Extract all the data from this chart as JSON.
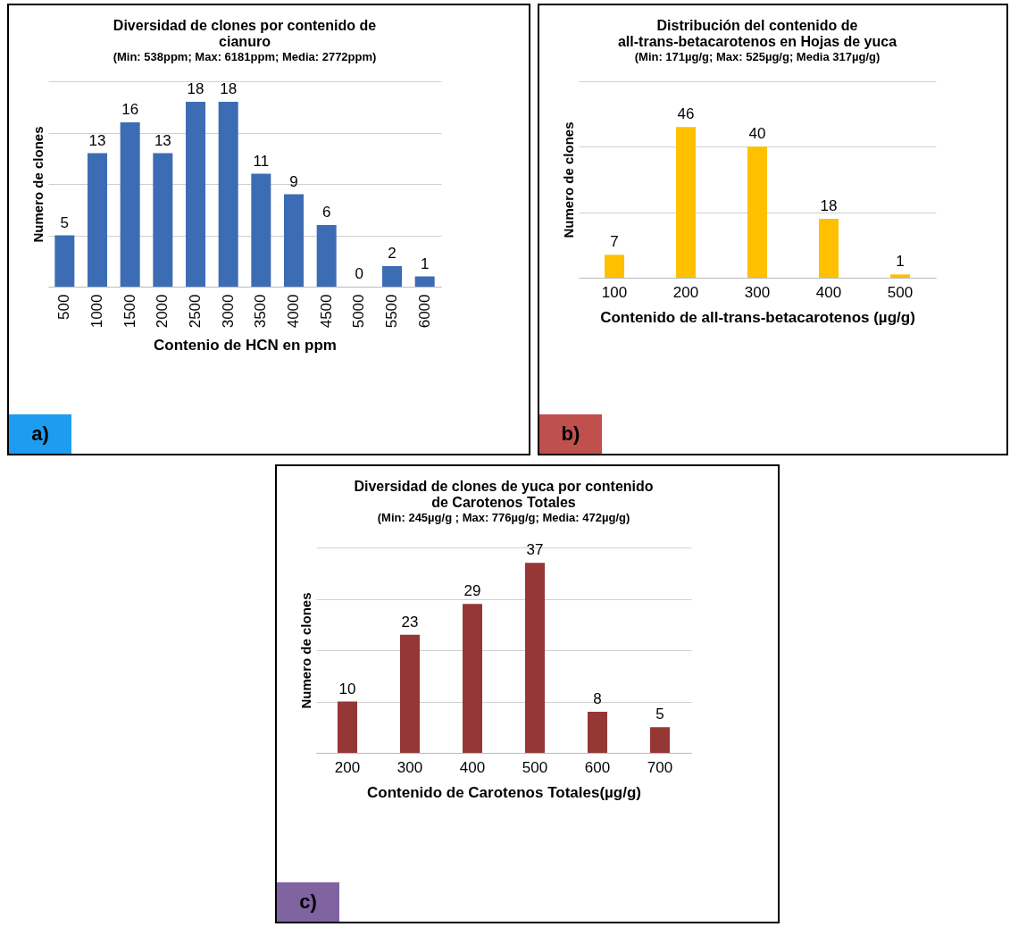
{
  "chart_data": [
    {
      "type": "bar",
      "title": "Diversidad de clones por contenido de cianuro",
      "subtitle": "(Min: 538ppm; Max: 6181ppm; Media: 2772ppm)",
      "xlabel": "Contenio de HCN en ppm",
      "ylabel": "Numero de clones",
      "categories": [
        "500",
        "1000",
        "1500",
        "2000",
        "2500",
        "3000",
        "3500",
        "4000",
        "4500",
        "5000",
        "5500",
        "6000"
      ],
      "series": [
        {
          "color": "#3c6cb4",
          "values": [
            5,
            13,
            16,
            13,
            18,
            18,
            11,
            9,
            6,
            0,
            2,
            1
          ]
        }
      ],
      "ylim": [
        0,
        20
      ],
      "yticks": [
        {
          "value": 0,
          "label": null
        },
        {
          "value": 5,
          "label": null
        },
        {
          "value": 10,
          "label": null
        },
        {
          "value": 15,
          "label": null
        },
        {
          "value": 20,
          "label": null
        }
      ],
      "grid": "y",
      "data_labels": true,
      "tick_labels": "x",
      "annotations": [
        "a)"
      ]
    },
    {
      "type": "bar",
      "title": "Distribución del contenido de all-trans-betacarotenos en Hojas de yuca",
      "subtitle": "(Min: 171µg/g; Max: 525µg/g; Media 317µg/g)",
      "xlabel": "Contenido de all-trans-betacarotenos (µg/g)",
      "ylabel": "Numero de clones",
      "categories": [
        "100",
        "200",
        "300",
        "400",
        "500"
      ],
      "series": [
        {
          "color": "#ffc000",
          "values": [
            7,
            46,
            40,
            18,
            1
          ]
        }
      ],
      "ylim": [
        0,
        60
      ],
      "yticks": [
        {
          "value": 0,
          "label": null
        },
        {
          "value": 20,
          "label": null
        },
        {
          "value": 40,
          "label": null
        },
        {
          "value": 60,
          "label": null
        }
      ],
      "grid": "y",
      "data_labels": true,
      "tick_labels": "x",
      "annotations": [
        "b)"
      ]
    },
    {
      "type": "bar",
      "title": "Diversidad de clones de yuca por contenido de Carotenos Totales",
      "subtitle": "(Min: 245µg/g ; Max: 776µg/g; Media: 472µg/g)",
      "xlabel": "Contenido de Carotenos Totales(µg/g)",
      "ylabel": "Numero de clones",
      "categories": [
        "200",
        "300",
        "400",
        "500",
        "600",
        "700"
      ],
      "series": [
        {
          "color": "#953735",
          "values": [
            10,
            23,
            29,
            37,
            8,
            5
          ]
        }
      ],
      "ylim": [
        0,
        40
      ],
      "yticks": [
        {
          "value": 0,
          "label": null
        },
        {
          "value": 10,
          "label": null
        },
        {
          "value": 20,
          "label": null
        },
        {
          "value": 30,
          "label": null
        },
        {
          "value": 40,
          "label": null
        }
      ],
      "grid": "y",
      "data_labels": true,
      "tick_labels": "x",
      "annotations": [
        "c)"
      ]
    }
  ]
}
